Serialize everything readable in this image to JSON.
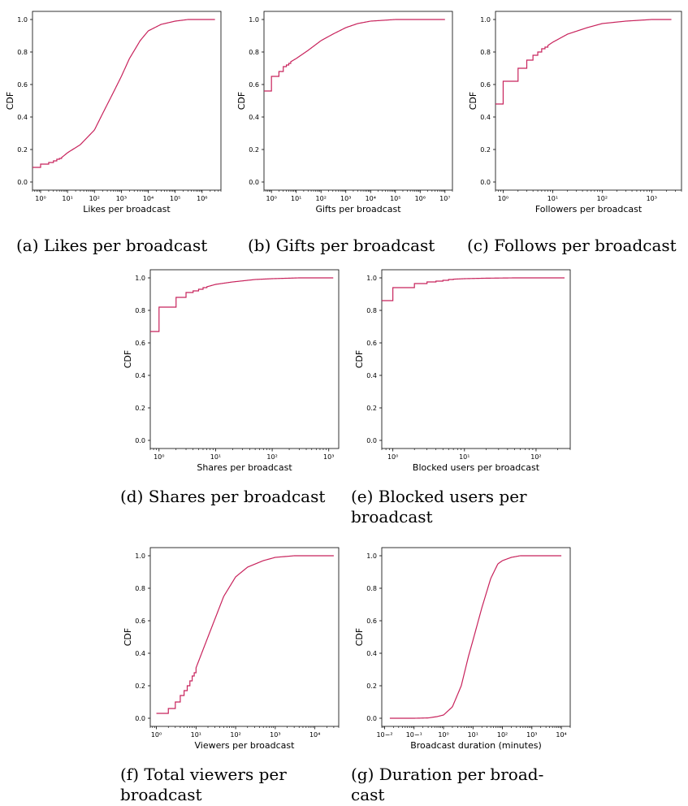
{
  "colors": {
    "curve": "#c8235c",
    "axis": "#000000"
  },
  "chart_data": [
    {
      "id": "a",
      "type": "line",
      "xscale": "log",
      "xlabel": "Likes per broadcast",
      "ylabel": "CDF",
      "xlim": [
        0.5,
        5000000
      ],
      "ylim": [
        -0.05,
        1.05
      ],
      "x_ticks": [
        {
          "e": 0
        },
        {
          "e": 1
        },
        {
          "e": 2
        },
        {
          "e": 3
        },
        {
          "e": 4
        },
        {
          "e": 5
        },
        {
          "e": 6
        }
      ],
      "y_ticks": [
        "0.0",
        "0.2",
        "0.4",
        "0.6",
        "0.8",
        "1.0"
      ],
      "step_until": 6,
      "series": [
        {
          "x": [
            0.5,
            1,
            2,
            3,
            4,
            5,
            6,
            10,
            30,
            100,
            200,
            500,
            1000,
            2000,
            5000,
            10000,
            30000,
            100000,
            300000,
            3000000
          ],
          "y": [
            0.09,
            0.11,
            0.12,
            0.13,
            0.14,
            0.145,
            0.15,
            0.18,
            0.23,
            0.32,
            0.42,
            0.55,
            0.65,
            0.76,
            0.87,
            0.93,
            0.97,
            0.99,
            1.0,
            1.0
          ]
        }
      ],
      "caption": "(a) Likes per broadcast"
    },
    {
      "id": "b",
      "type": "line",
      "xscale": "log",
      "xlabel": "Gifts per broadcast",
      "ylabel": "CDF",
      "xlim": [
        0.5,
        20000000
      ],
      "ylim": [
        -0.05,
        1.05
      ],
      "x_ticks": [
        {
          "e": 0
        },
        {
          "e": 1
        },
        {
          "e": 2
        },
        {
          "e": 3
        },
        {
          "e": 4
        },
        {
          "e": 5
        },
        {
          "e": 6
        },
        {
          "e": 7
        }
      ],
      "y_ticks": [
        "0.0",
        "0.2",
        "0.4",
        "0.6",
        "0.8",
        "1.0"
      ],
      "step_until": 6,
      "series": [
        {
          "x": [
            0.5,
            1,
            2,
            3,
            4,
            5,
            6,
            10,
            30,
            100,
            300,
            1000,
            3000,
            10000,
            100000,
            1000000,
            10000000
          ],
          "y": [
            0.56,
            0.65,
            0.68,
            0.71,
            0.72,
            0.73,
            0.74,
            0.76,
            0.81,
            0.87,
            0.91,
            0.95,
            0.975,
            0.99,
            1.0,
            1.0,
            1.0
          ]
        }
      ],
      "caption": "(b) Gifts per broadcast"
    },
    {
      "id": "c",
      "type": "line",
      "xscale": "log",
      "xlabel": "Followers per broadcast",
      "ylabel": "CDF",
      "xlim": [
        0.7,
        4000
      ],
      "ylim": [
        -0.05,
        1.05
      ],
      "x_ticks": [
        {
          "e": 0
        },
        {
          "e": 1
        },
        {
          "e": 2
        },
        {
          "e": 3
        }
      ],
      "y_ticks": [
        "0.0",
        "0.2",
        "0.4",
        "0.6",
        "0.8",
        "1.0"
      ],
      "step_until": 8,
      "series": [
        {
          "x": [
            0.7,
            1,
            2,
            3,
            4,
            5,
            6,
            7,
            8,
            10,
            20,
            50,
            100,
            300,
            1000,
            2500
          ],
          "y": [
            0.48,
            0.62,
            0.7,
            0.75,
            0.78,
            0.8,
            0.82,
            0.83,
            0.84,
            0.86,
            0.91,
            0.95,
            0.975,
            0.99,
            1.0,
            1.0
          ]
        }
      ],
      "caption": "(c) Follows per broadcast"
    },
    {
      "id": "d",
      "type": "line",
      "xscale": "log",
      "xlabel": "Shares per broadcast",
      "ylabel": "CDF",
      "xlim": [
        0.7,
        1500
      ],
      "ylim": [
        -0.05,
        1.05
      ],
      "x_ticks": [
        {
          "e": 0
        },
        {
          "e": 1
        },
        {
          "e": 2
        },
        {
          "e": 3
        }
      ],
      "y_ticks": [
        "0.0",
        "0.2",
        "0.4",
        "0.6",
        "0.8",
        "1.0"
      ],
      "step_until": 7,
      "series": [
        {
          "x": [
            0.7,
            1,
            2,
            3,
            4,
            5,
            6,
            7,
            10,
            20,
            50,
            100,
            300,
            1200
          ],
          "y": [
            0.67,
            0.82,
            0.88,
            0.91,
            0.92,
            0.93,
            0.94,
            0.945,
            0.96,
            0.975,
            0.99,
            0.995,
            1.0,
            1.0
          ]
        }
      ],
      "caption": "(d) Shares per broadcast"
    },
    {
      "id": "e",
      "type": "line",
      "xscale": "log",
      "xlabel": "Blocked users per broadcast",
      "ylabel": "CDF",
      "xlim": [
        0.7,
        300
      ],
      "ylim": [
        -0.05,
        1.05
      ],
      "x_ticks": [
        {
          "e": 0
        },
        {
          "e": 1
        },
        {
          "e": 2
        }
      ],
      "y_ticks": [
        "0.0",
        "0.2",
        "0.4",
        "0.6",
        "0.8",
        "1.0"
      ],
      "step_until": 7,
      "series": [
        {
          "x": [
            0.7,
            1,
            2,
            3,
            4,
            5,
            6,
            7,
            10,
            20,
            50,
            100,
            250
          ],
          "y": [
            0.86,
            0.94,
            0.965,
            0.975,
            0.98,
            0.985,
            0.99,
            0.992,
            0.995,
            0.998,
            1.0,
            1.0,
            1.0
          ]
        }
      ],
      "caption_lines": [
        "(e) Blocked users per",
        "broadcast"
      ]
    },
    {
      "id": "f",
      "type": "line",
      "xscale": "log",
      "xlabel": "Viewers per broadcast",
      "ylabel": "CDF",
      "xlim": [
        0.7,
        40000
      ],
      "ylim": [
        -0.05,
        1.05
      ],
      "x_ticks": [
        {
          "e": 0
        },
        {
          "e": 1
        },
        {
          "e": 2
        },
        {
          "e": 3
        },
        {
          "e": 4
        }
      ],
      "y_ticks": [
        "0.0",
        "0.2",
        "0.4",
        "0.6",
        "0.8",
        "1.0"
      ],
      "step_until": 10,
      "series": [
        {
          "x": [
            1,
            2,
            3,
            4,
            5,
            6,
            7,
            8,
            9,
            10,
            20,
            50,
            100,
            200,
            500,
            1000,
            3000,
            30000
          ],
          "y": [
            0.03,
            0.06,
            0.1,
            0.14,
            0.17,
            0.2,
            0.23,
            0.26,
            0.28,
            0.31,
            0.5,
            0.75,
            0.87,
            0.93,
            0.97,
            0.99,
            1.0,
            1.0
          ]
        }
      ],
      "caption_lines": [
        "(f) Total viewers per",
        "broadcast"
      ]
    },
    {
      "id": "g",
      "type": "line",
      "xscale": "log",
      "xlabel": "Broadcast duration (minutes)",
      "ylabel": "CDF",
      "xlim": [
        0.008,
        20000
      ],
      "ylim": [
        -0.05,
        1.05
      ],
      "x_ticks": [
        {
          "e": -2
        },
        {
          "e": -1
        },
        {
          "e": 0
        },
        {
          "e": 1
        },
        {
          "e": 2
        },
        {
          "e": 3
        },
        {
          "e": 4
        }
      ],
      "y_ticks": [
        "0.0",
        "0.2",
        "0.4",
        "0.6",
        "0.8",
        "1.0"
      ],
      "step_until": 0,
      "series": [
        {
          "x": [
            0.015,
            0.1,
            0.3,
            0.6,
            1,
            2,
            4,
            7,
            10,
            20,
            40,
            70,
            100,
            200,
            400,
            1000,
            10000
          ],
          "y": [
            0.0,
            0.0,
            0.002,
            0.01,
            0.02,
            0.07,
            0.2,
            0.38,
            0.48,
            0.68,
            0.86,
            0.95,
            0.97,
            0.99,
            1.0,
            1.0,
            1.0
          ]
        }
      ],
      "caption_lines": [
        "(g) Duration per broad-",
        "cast"
      ]
    }
  ]
}
